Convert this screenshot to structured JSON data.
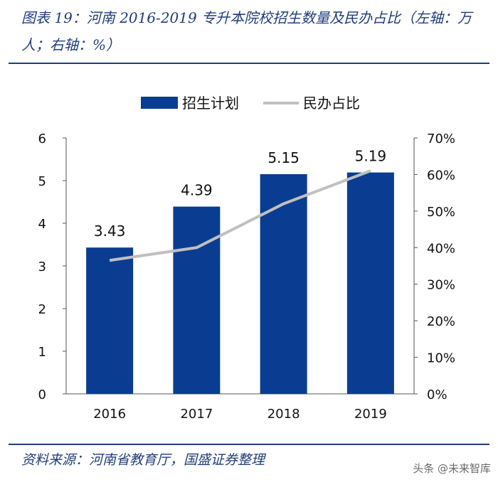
{
  "title": "图表 19：河南 2016-2019 专升本院校招生数量及民办占比（左轴：万人；右轴：%）",
  "source": "资料来源：河南省教育厅，国盛证券整理",
  "watermark": "头条 @未来智库",
  "colors": {
    "bar": "#0a3d91",
    "line": "#c0c0c0",
    "title": "#1f3d7a"
  },
  "chart_data": {
    "type": "bar",
    "categories": [
      "2016",
      "2017",
      "2018",
      "2019"
    ],
    "series": [
      {
        "name": "招生计划",
        "type": "bar",
        "axis": "left",
        "values": [
          3.43,
          4.39,
          5.15,
          5.19
        ],
        "labels": [
          "3.43",
          "4.39",
          "5.15",
          "5.19"
        ]
      },
      {
        "name": "民办占比",
        "type": "line",
        "axis": "right",
        "values": [
          36.5,
          40,
          52,
          61
        ]
      }
    ],
    "y_left": {
      "min": 0,
      "max": 6,
      "ticks": [
        "0",
        "1",
        "2",
        "3",
        "4",
        "5",
        "6"
      ]
    },
    "y_right": {
      "min": 0,
      "max": 70,
      "ticks": [
        "0%",
        "10%",
        "20%",
        "30%",
        "40%",
        "50%",
        "60%",
        "70%"
      ]
    },
    "legend": [
      "招生计划",
      "民办占比"
    ],
    "legend_position": "top-center"
  }
}
